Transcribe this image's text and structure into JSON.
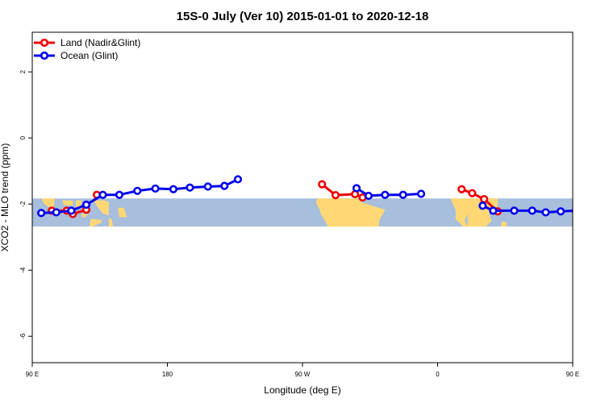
{
  "chart_data": {
    "type": "line",
    "title": "15S-0 July (Ver 10)   2015-01-01 to 2020-12-18",
    "xlabel": "Longitude (deg E)",
    "ylabel": "XCO2 - MLO trend (ppm)",
    "xlim": [
      90,
      450
    ],
    "ylim": [
      -6.8,
      3.2
    ],
    "x_ticks": [
      {
        "value": 90,
        "label": "90 E"
      },
      {
        "value": 180,
        "label": "180"
      },
      {
        "value": 270,
        "label": "90 W"
      },
      {
        "value": 360,
        "label": "0"
      },
      {
        "value": 450,
        "label": "90 E"
      },
      {
        "value": 540,
        "label": "180"
      }
    ],
    "y_ticks": [
      {
        "value": 2,
        "label": "2"
      },
      {
        "value": 0,
        "label": "0"
      },
      {
        "value": -2,
        "label": "-2"
      },
      {
        "value": -4,
        "label": "-4"
      },
      {
        "value": -6,
        "label": "-6"
      }
    ],
    "map_strip": {
      "lat_range": [
        -15,
        0
      ],
      "y_range": [
        -2.68,
        -1.83
      ],
      "ocean_color": "#a7bedc",
      "land_color": "#ffd875"
    },
    "legend_position": "top-left",
    "series": [
      {
        "name": "Land (Nadir&Glint)",
        "color": "#ee0000",
        "segments": [
          [
            [
              103,
              -2.2
            ],
            [
              113,
              -2.2
            ],
            [
              117,
              -2.3
            ],
            [
              126,
              -2.17
            ]
          ],
          [
            [
              133,
              -1.72
            ]
          ],
          [
            [
              283,
              -1.4
            ],
            [
              292,
              -1.73
            ],
            [
              305,
              -1.7
            ],
            [
              310,
              -1.8
            ]
          ],
          [
            [
              376,
              -1.55
            ],
            [
              383,
              -1.67
            ],
            [
              391,
              -1.85
            ],
            [
              400,
              -2.22
            ]
          ],
          [
            [
              457,
              -2.2
            ],
            [
              463,
              -2.2
            ],
            [
              472,
              -2.32
            ],
            [
              480,
              -2.15
            ]
          ]
        ]
      },
      {
        "name": "Ocean (Glint)",
        "color": "#0000ee",
        "segments": [
          [
            [
              96,
              -2.27
            ],
            [
              106,
              -2.25
            ],
            [
              116,
              -2.2
            ],
            [
              126,
              -2.02
            ],
            [
              137,
              -1.72
            ],
            [
              148,
              -1.72
            ],
            [
              160,
              -1.6
            ],
            [
              172,
              -1.53
            ],
            [
              184,
              -1.55
            ],
            [
              195,
              -1.5
            ],
            [
              207,
              -1.47
            ],
            [
              218,
              -1.45
            ],
            [
              227,
              -1.25
            ]
          ],
          [
            [
              306,
              -1.52
            ],
            [
              314,
              -1.75
            ],
            [
              325,
              -1.72
            ],
            [
              337,
              -1.72
            ],
            [
              349,
              -1.69
            ]
          ],
          [
            [
              390,
              -2.05
            ],
            [
              397,
              -2.2
            ],
            [
              411,
              -2.2
            ],
            [
              423,
              -2.2
            ],
            [
              432,
              -2.25
            ],
            [
              442,
              -2.22
            ],
            [
              452,
              -2.2
            ],
            [
              463,
              -2.02
            ],
            [
              474,
              -1.73
            ],
            [
              485,
              -1.71
            ]
          ]
        ]
      }
    ]
  }
}
